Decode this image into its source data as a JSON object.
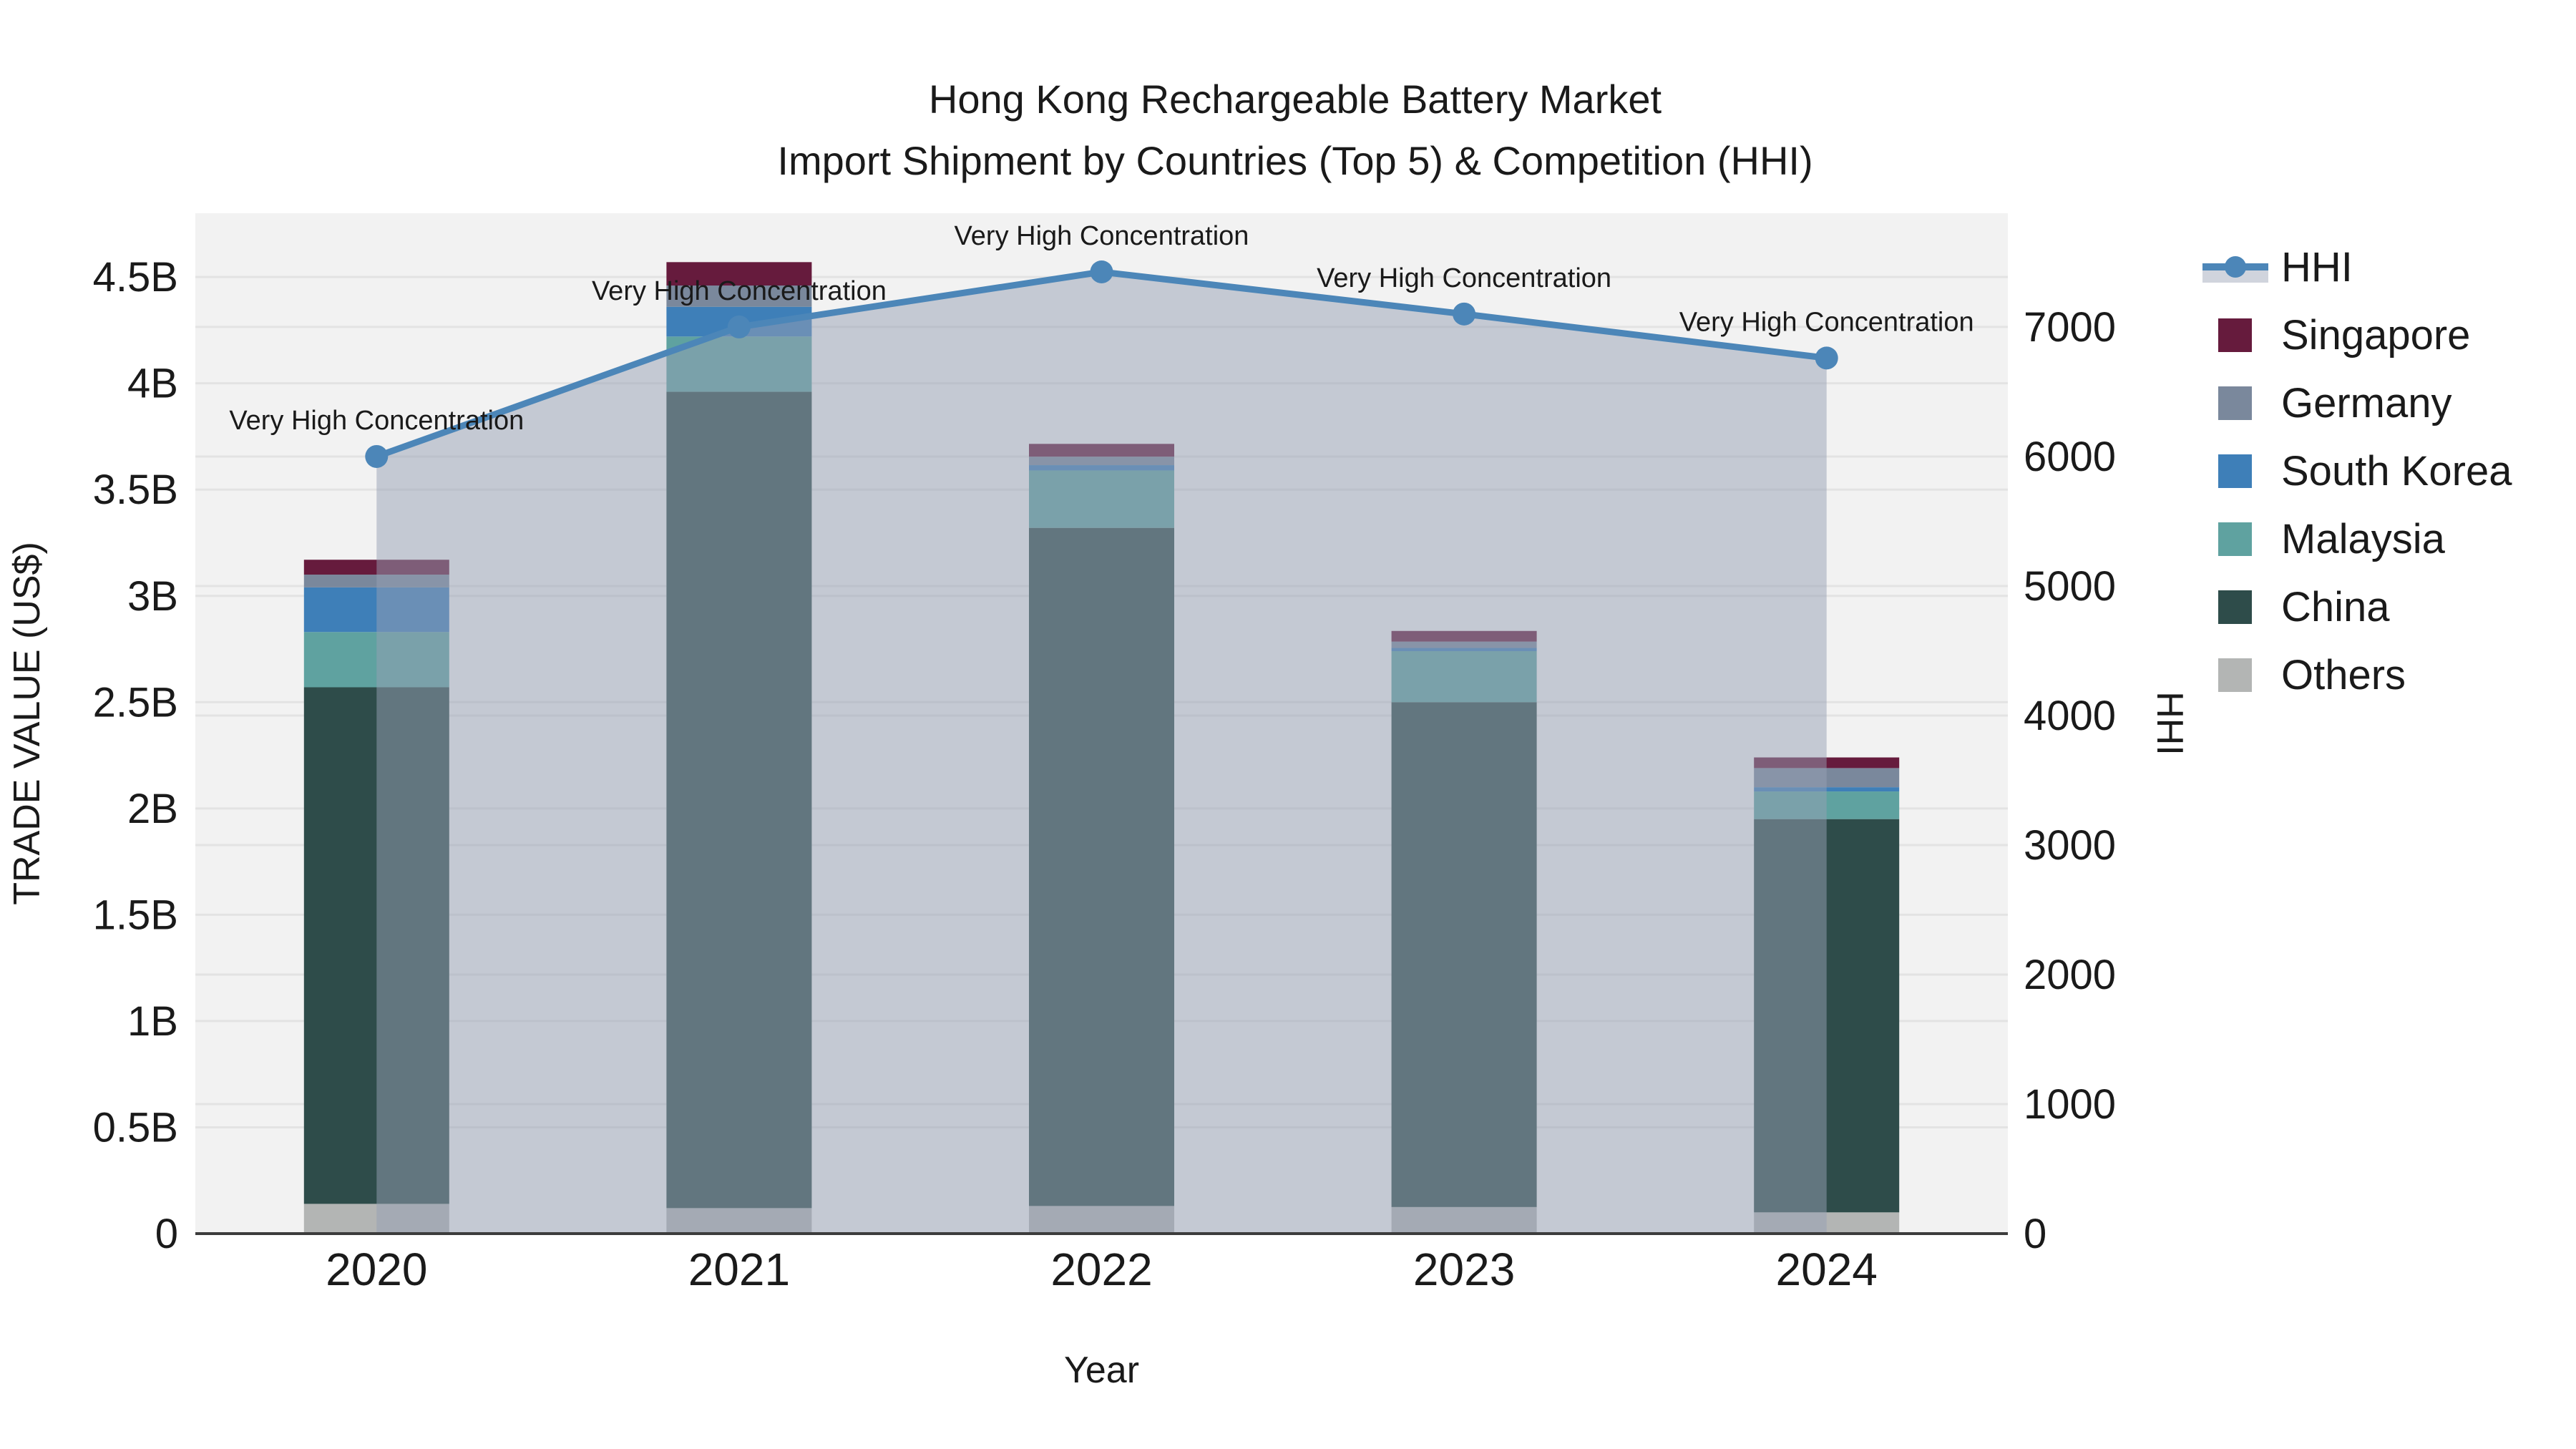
{
  "title": {
    "line1": "Hong Kong Rechargeable Battery Market",
    "line2": "Import Shipment by Countries (Top 5) & Competition (HHI)"
  },
  "chart_data": {
    "type": "bar+line",
    "title": "Hong Kong Rechargeable Battery Market — Import Shipment by Countries (Top 5) & Competition (HHI)",
    "categories": [
      "2020",
      "2021",
      "2022",
      "2023",
      "2024"
    ],
    "bar_unit": "billion US$",
    "bar_series": [
      {
        "name": "Others",
        "color": "#b3b5b4",
        "values": [
          0.14,
          0.12,
          0.13,
          0.125,
          0.1
        ]
      },
      {
        "name": "China",
        "color": "#2e4c4a",
        "values": [
          2.43,
          3.84,
          3.19,
          2.375,
          1.85
        ]
      },
      {
        "name": "Malaysia",
        "color": "#5fa2a0",
        "values": [
          0.26,
          0.26,
          0.27,
          0.24,
          0.13
        ]
      },
      {
        "name": "South Korea",
        "color": "#3e7fb8",
        "values": [
          0.21,
          0.14,
          0.025,
          0.015,
          0.02
        ]
      },
      {
        "name": "Germany",
        "color": "#7a889c",
        "values": [
          0.06,
          0.1,
          0.04,
          0.03,
          0.09
        ]
      },
      {
        "name": "Singapore",
        "color": "#661b3d",
        "values": [
          0.07,
          0.11,
          0.06,
          0.05,
          0.05
        ]
      }
    ],
    "bar_totals": [
      3.17,
      4.57,
      3.715,
      2.835,
      2.24
    ],
    "line_series": {
      "name": "HHI",
      "color": "#4c86b8",
      "area_fill": "rgba(150,160,180,0.5)",
      "values": [
        6000,
        7000,
        7425,
        7100,
        6760
      ]
    },
    "annotations": [
      {
        "text": "Very High Concentration"
      },
      {
        "text": "Very High Concentration"
      },
      {
        "text": "Very High Concentration"
      },
      {
        "text": "Very High Concentration"
      },
      {
        "text": "Very High Concentration"
      }
    ],
    "axes": {
      "x": {
        "title": "Year"
      },
      "y_left": {
        "title": "TRADE VALUE (US$)",
        "max": 4.8,
        "ticks": [
          {
            "label": "0",
            "value": 0
          },
          {
            "label": "0.5B",
            "value": 0.5
          },
          {
            "label": "1B",
            "value": 1
          },
          {
            "label": "1.5B",
            "value": 1.5
          },
          {
            "label": "2B",
            "value": 2
          },
          {
            "label": "2.5B",
            "value": 2.5
          },
          {
            "label": "3B",
            "value": 3
          },
          {
            "label": "3.5B",
            "value": 3.5
          },
          {
            "label": "4B",
            "value": 4
          },
          {
            "label": "4.5B",
            "value": 4.5
          }
        ]
      },
      "y_right": {
        "title": "HHI",
        "max": 7878,
        "ticks": [
          {
            "label": "0",
            "value": 0
          },
          {
            "label": "1000",
            "value": 1000
          },
          {
            "label": "2000",
            "value": 2000
          },
          {
            "label": "3000",
            "value": 3000
          },
          {
            "label": "4000",
            "value": 4000
          },
          {
            "label": "5000",
            "value": 5000
          },
          {
            "label": "6000",
            "value": 6000
          },
          {
            "label": "7000",
            "value": 7000
          }
        ]
      }
    },
    "legend": [
      {
        "label": "HHI",
        "type": "line",
        "color": "#4c86b8"
      },
      {
        "label": "Singapore",
        "type": "square",
        "color": "#661b3d"
      },
      {
        "label": "Germany",
        "type": "square",
        "color": "#7a889c"
      },
      {
        "label": "South Korea",
        "type": "square",
        "color": "#3e7fb8"
      },
      {
        "label": "Malaysia",
        "type": "square",
        "color": "#5fa2a0"
      },
      {
        "label": "China",
        "type": "square",
        "color": "#2e4c4a"
      },
      {
        "label": "Others",
        "type": "square",
        "color": "#b3b5b4"
      }
    ],
    "layout_hints": {
      "plot_bg": "#f2f2f2",
      "grid_color": "#e3e3e3",
      "axis_line_color": "#3c3c3c",
      "grid": "horizontal-only",
      "legend_position": "right-top"
    }
  }
}
